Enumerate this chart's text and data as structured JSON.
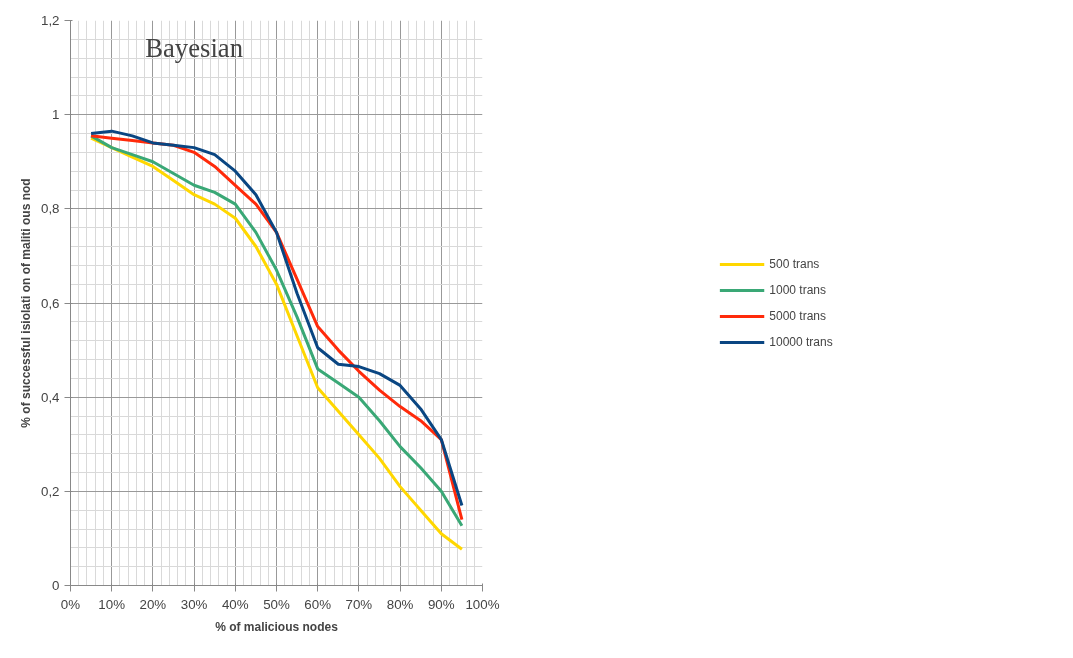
{
  "chart_data": {
    "type": "line",
    "title": "Bayesian",
    "xlabel": "% of malicious nodes",
    "ylabel": "% of successful isiolati on of maliti ous nod",
    "x": [
      5,
      10,
      15,
      20,
      25,
      30,
      35,
      40,
      45,
      50,
      55,
      60,
      65,
      70,
      75,
      80,
      85,
      90,
      95
    ],
    "series": [
      {
        "name": "500 trans",
        "color": "#ffd700",
        "values": [
          0.95,
          0.93,
          0.91,
          0.89,
          0.86,
          0.83,
          0.81,
          0.78,
          0.72,
          0.64,
          0.53,
          0.42,
          0.37,
          0.32,
          0.27,
          0.21,
          0.16,
          0.11,
          0.077
        ]
      },
      {
        "name": "1000 trans",
        "color": "#3aa876",
        "values": [
          0.955,
          0.93,
          0.915,
          0.9,
          0.875,
          0.85,
          0.835,
          0.81,
          0.75,
          0.67,
          0.57,
          0.46,
          0.43,
          0.4,
          0.35,
          0.295,
          0.25,
          0.2,
          0.127
        ]
      },
      {
        "name": "5000 trans",
        "color": "#ff2a0a",
        "values": [
          0.955,
          0.95,
          0.945,
          0.94,
          0.935,
          0.92,
          0.89,
          0.85,
          0.81,
          0.75,
          0.65,
          0.55,
          0.5,
          0.455,
          0.415,
          0.38,
          0.35,
          0.31,
          0.14
        ]
      },
      {
        "name": "10000 trans",
        "color": "#0a4682",
        "values": [
          0.96,
          0.965,
          0.955,
          0.94,
          0.935,
          0.93,
          0.915,
          0.88,
          0.83,
          0.75,
          0.62,
          0.505,
          0.47,
          0.465,
          0.45,
          0.425,
          0.375,
          0.31,
          0.17
        ]
      }
    ],
    "xlim": [
      0,
      100
    ],
    "xticks": [
      {
        "value": 0,
        "label": "0%"
      },
      {
        "value": 10,
        "label": "10%"
      },
      {
        "value": 20,
        "label": "20%"
      },
      {
        "value": 30,
        "label": "30%"
      },
      {
        "value": 40,
        "label": "40%"
      },
      {
        "value": 50,
        "label": "50%"
      },
      {
        "value": 60,
        "label": "60%"
      },
      {
        "value": 70,
        "label": "70%"
      },
      {
        "value": 80,
        "label": "80%"
      },
      {
        "value": 90,
        "label": "90%"
      },
      {
        "value": 100,
        "label": "100%"
      }
    ],
    "ylim": [
      0,
      1.2
    ],
    "yticks": [
      0,
      {
        "value": 0.2,
        "label": "0,2"
      },
      {
        "value": 0.4,
        "label": "0,4"
      },
      {
        "value": 0.6,
        "label": "0,6"
      },
      {
        "value": 0.8,
        "label": "0,8"
      },
      1,
      {
        "value": 1.2,
        "label": "1,2"
      }
    ],
    "grid": true,
    "legend": "right",
    "marker": "none",
    "line_style": "solid"
  }
}
